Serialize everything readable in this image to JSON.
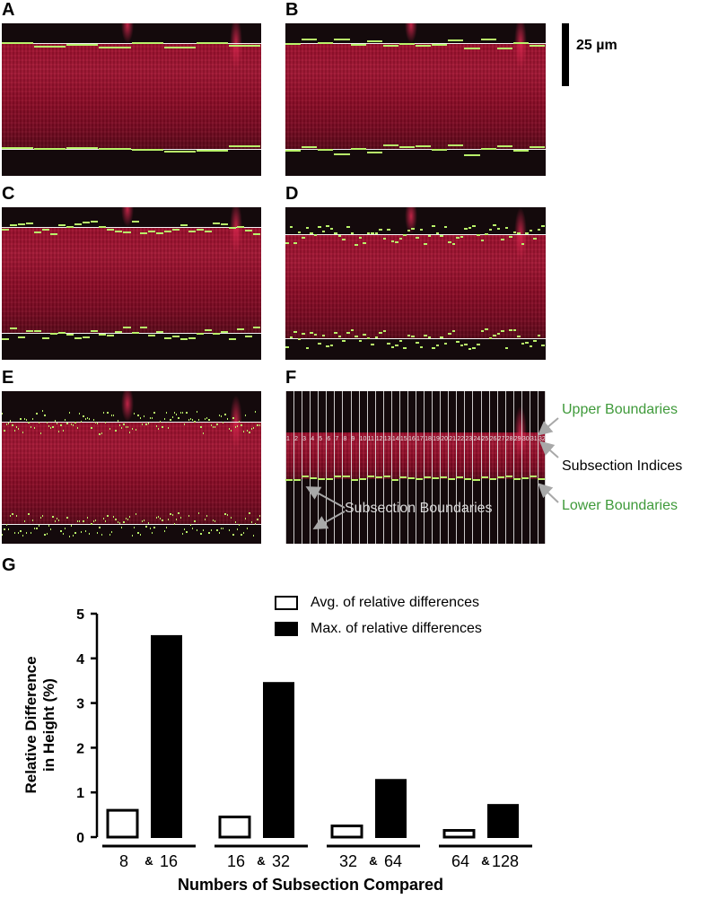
{
  "panels": {
    "A": "A",
    "B": "B",
    "C": "C",
    "D": "D",
    "E": "E",
    "F": "F",
    "G": "G"
  },
  "scale_bar": {
    "label": "25 µm"
  },
  "panel_f": {
    "indices": [
      "1",
      "2",
      "3",
      "4",
      "5",
      "6",
      "7",
      "8",
      "9",
      "10",
      "11",
      "12",
      "13",
      "14",
      "15",
      "16",
      "17",
      "18",
      "19",
      "20",
      "21",
      "22",
      "23",
      "24",
      "25",
      "26",
      "27",
      "28",
      "29",
      "30",
      "31",
      "32"
    ],
    "annotations": {
      "upper": "Upper Boundaries",
      "indices": "Subsection Indices",
      "lower": "Lower Boundaries",
      "subsection": "Subsection Boundaries"
    },
    "colors": {
      "label_green": "#3f9a3a",
      "boundary_green": "#b9f26a"
    }
  },
  "chart_data": {
    "type": "bar",
    "ylabel_line1": "Relative Difference",
    "ylabel_line2": "in  Height  (%)",
    "xlabel": "Numbers of Subsection Compared",
    "ylim": [
      0,
      5
    ],
    "yticks": [
      "0",
      "1",
      "2",
      "3",
      "4",
      "5"
    ],
    "categories": [
      {
        "left": "8",
        "amp": "&",
        "right": "16"
      },
      {
        "left": "16",
        "amp": "&",
        "right": "32"
      },
      {
        "left": "32",
        "amp": "&",
        "right": "64"
      },
      {
        "left": "64",
        "amp": "&",
        "right": "128"
      }
    ],
    "series": [
      {
        "name": "Avg. of relative differences",
        "values": [
          0.6,
          0.45,
          0.25,
          0.15
        ],
        "fill": "#ffffff"
      },
      {
        "name": "Max. of relative differences",
        "values": [
          4.5,
          3.45,
          1.28,
          0.72
        ],
        "fill": "#000000"
      }
    ]
  }
}
